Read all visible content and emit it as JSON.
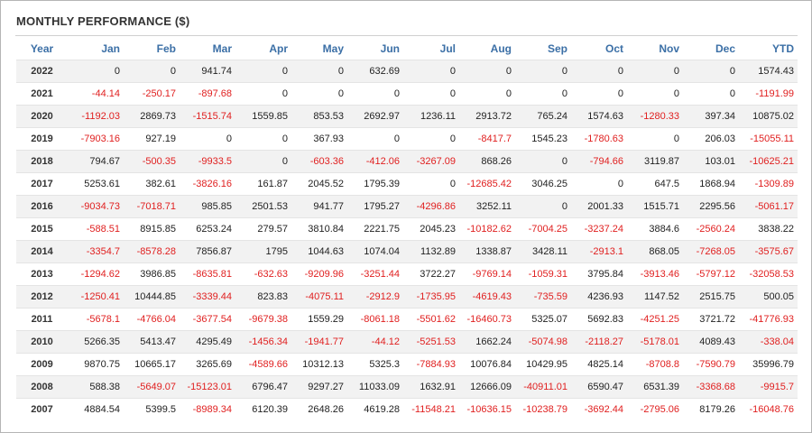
{
  "title": "MONTHLY PERFORMANCE ($)",
  "colors": {
    "header": "#3b6fa6",
    "negative": "#e02020",
    "positive": "#222222",
    "stripe": "#f2f2f2"
  },
  "columns": [
    "Year",
    "Jan",
    "Feb",
    "Mar",
    "Apr",
    "May",
    "Jun",
    "Jul",
    "Aug",
    "Sep",
    "Oct",
    "Nov",
    "Dec",
    "YTD"
  ],
  "rows": [
    {
      "year": "2022",
      "values": [
        "0",
        "0",
        "941.74",
        "0",
        "0",
        "632.69",
        "0",
        "0",
        "0",
        "0",
        "0",
        "0",
        "1574.43"
      ]
    },
    {
      "year": "2021",
      "values": [
        "-44.14",
        "-250.17",
        "-897.68",
        "0",
        "0",
        "0",
        "0",
        "0",
        "0",
        "0",
        "0",
        "0",
        "-1191.99"
      ]
    },
    {
      "year": "2020",
      "values": [
        "-1192.03",
        "2869.73",
        "-1515.74",
        "1559.85",
        "853.53",
        "2692.97",
        "1236.11",
        "2913.72",
        "765.24",
        "1574.63",
        "-1280.33",
        "397.34",
        "10875.02"
      ]
    },
    {
      "year": "2019",
      "values": [
        "-7903.16",
        "927.19",
        "0",
        "0",
        "367.93",
        "0",
        "0",
        "-8417.7",
        "1545.23",
        "-1780.63",
        "0",
        "206.03",
        "-15055.11"
      ]
    },
    {
      "year": "2018",
      "values": [
        "794.67",
        "-500.35",
        "-9933.5",
        "0",
        "-603.36",
        "-412.06",
        "-3267.09",
        "868.26",
        "0",
        "-794.66",
        "3119.87",
        "103.01",
        "-10625.21"
      ]
    },
    {
      "year": "2017",
      "values": [
        "5253.61",
        "382.61",
        "-3826.16",
        "161.87",
        "2045.52",
        "1795.39",
        "0",
        "-12685.42",
        "3046.25",
        "0",
        "647.5",
        "1868.94",
        "-1309.89"
      ]
    },
    {
      "year": "2016",
      "values": [
        "-9034.73",
        "-7018.71",
        "985.85",
        "2501.53",
        "941.77",
        "1795.27",
        "-4296.86",
        "3252.11",
        "0",
        "2001.33",
        "1515.71",
        "2295.56",
        "-5061.17"
      ]
    },
    {
      "year": "2015",
      "values": [
        "-588.51",
        "8915.85",
        "6253.24",
        "279.57",
        "3810.84",
        "2221.75",
        "2045.23",
        "-10182.62",
        "-7004.25",
        "-3237.24",
        "3884.6",
        "-2560.24",
        "3838.22"
      ]
    },
    {
      "year": "2014",
      "values": [
        "-3354.7",
        "-8578.28",
        "7856.87",
        "1795",
        "1044.63",
        "1074.04",
        "1132.89",
        "1338.87",
        "3428.11",
        "-2913.1",
        "868.05",
        "-7268.05",
        "-3575.67"
      ]
    },
    {
      "year": "2013",
      "values": [
        "-1294.62",
        "3986.85",
        "-8635.81",
        "-632.63",
        "-9209.96",
        "-3251.44",
        "3722.27",
        "-9769.14",
        "-1059.31",
        "3795.84",
        "-3913.46",
        "-5797.12",
        "-32058.53"
      ]
    },
    {
      "year": "2012",
      "values": [
        "-1250.41",
        "10444.85",
        "-3339.44",
        "823.83",
        "-4075.11",
        "-2912.9",
        "-1735.95",
        "-4619.43",
        "-735.59",
        "4236.93",
        "1147.52",
        "2515.75",
        "500.05"
      ]
    },
    {
      "year": "2011",
      "values": [
        "-5678.1",
        "-4766.04",
        "-3677.54",
        "-9679.38",
        "1559.29",
        "-8061.18",
        "-5501.62",
        "-16460.73",
        "5325.07",
        "5692.83",
        "-4251.25",
        "3721.72",
        "-41776.93"
      ]
    },
    {
      "year": "2010",
      "values": [
        "5266.35",
        "5413.47",
        "4295.49",
        "-1456.34",
        "-1941.77",
        "-44.12",
        "-5251.53",
        "1662.24",
        "-5074.98",
        "-2118.27",
        "-5178.01",
        "4089.43",
        "-338.04"
      ]
    },
    {
      "year": "2009",
      "values": [
        "9870.75",
        "10665.17",
        "3265.69",
        "-4589.66",
        "10312.13",
        "5325.3",
        "-7884.93",
        "10076.84",
        "10429.95",
        "4825.14",
        "-8708.8",
        "-7590.79",
        "35996.79"
      ]
    },
    {
      "year": "2008",
      "values": [
        "588.38",
        "-5649.07",
        "-15123.01",
        "6796.47",
        "9297.27",
        "11033.09",
        "1632.91",
        "12666.09",
        "-40911.01",
        "6590.47",
        "6531.39",
        "-3368.68",
        "-9915.7"
      ]
    },
    {
      "year": "2007",
      "values": [
        "4884.54",
        "5399.5",
        "-8989.34",
        "6120.39",
        "2648.26",
        "4619.28",
        "-11548.21",
        "-10636.15",
        "-10238.79",
        "-3692.44",
        "-2795.06",
        "8179.26",
        "-16048.76"
      ]
    }
  ]
}
